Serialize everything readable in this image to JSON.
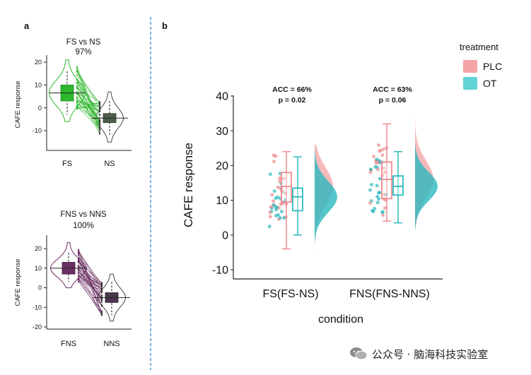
{
  "panel_a": {
    "label": "a",
    "top": {
      "title": "FS vs NS",
      "percent": "97%",
      "ylabel": "CAFE response",
      "yticks": [
        "20",
        "10",
        "0",
        "-10"
      ],
      "xticks": [
        "FS",
        "NS"
      ]
    },
    "bottom": {
      "title": "FNS vs NNS",
      "percent": "100%",
      "ylabel": "CAFE response",
      "yticks": [
        "20",
        "10",
        "0",
        "-10",
        "-20"
      ],
      "xticks": [
        "FNS",
        "NNS"
      ]
    }
  },
  "panel_b": {
    "label": "b",
    "ylabel": "CAFE response",
    "xlabel": "condition",
    "yticks": [
      "40",
      "30",
      "20",
      "10",
      "0",
      "-10"
    ],
    "legend_title": "treatment",
    "groups": [
      {
        "name": "FS(FS-NS)",
        "acc": "ACC = 66%",
        "p": "p = 0.02"
      },
      {
        "name": "FNS(FNS-NNS)",
        "acc": "ACC = 63%",
        "p": "p = 0.06"
      }
    ],
    "legend": [
      {
        "name": "PLC",
        "color": "#f4a3a6"
      },
      {
        "name": "OT",
        "color": "#5fd3d6"
      }
    ]
  },
  "watermark": {
    "text": "公众号 · 脑海科技实验室"
  },
  "colors": {
    "green": "#2db82d",
    "green_dark": "#3f5a3f",
    "purple": "#6b2f63",
    "purple_dark": "#4e3652",
    "plc": "#f08a8e",
    "ot": "#2bb9bf",
    "divider": "#3d8fd6"
  },
  "chart_data": [
    {
      "type": "violin-paired",
      "title": "FS vs NS",
      "subtitle": "97%",
      "ylabel": "CAFE response",
      "categories": [
        "FS",
        "NS"
      ],
      "ylim": [
        -15,
        22
      ],
      "summary": [
        {
          "name": "FS",
          "median": 6.5,
          "q1": 3,
          "q3": 10,
          "min": -3,
          "max": 16
        },
        {
          "name": "NS",
          "median": -4.5,
          "q1": -6.5,
          "q3": -2.5,
          "min": -12,
          "max": 3
        }
      ]
    },
    {
      "type": "violin-paired",
      "title": "FNS vs NNS",
      "subtitle": "100%",
      "ylabel": "CAFE response",
      "categories": [
        "FNS",
        "NNS"
      ],
      "ylim": [
        -20,
        22
      ],
      "summary": [
        {
          "name": "FNS",
          "median": 10,
          "q1": 7,
          "q3": 13,
          "min": 3,
          "max": 18
        },
        {
          "name": "NNS",
          "median": -5,
          "q1": -7.5,
          "q3": -2.5,
          "min": -14,
          "max": 3
        }
      ]
    },
    {
      "type": "raincloud-box",
      "xlabel": "condition",
      "ylabel": "CAFE response",
      "categories": [
        "FS(FS-NS)",
        "FNS(FNS-NNS)"
      ],
      "ylim": [
        -10,
        40
      ],
      "annotations": [
        {
          "category": "FS(FS-NS)",
          "text": [
            "ACC = 66%",
            "p = 0.02"
          ]
        },
        {
          "category": "FNS(FNS-NNS)",
          "text": [
            "ACC = 63%",
            "p = 0.06"
          ]
        }
      ],
      "series": [
        {
          "name": "PLC",
          "boxes": [
            {
              "median": 14,
              "q1": 9.5,
              "q3": 18,
              "min": -4,
              "max": 24
            },
            {
              "median": 16,
              "q1": 10.5,
              "q3": 21,
              "min": 4,
              "max": 32
            }
          ]
        },
        {
          "name": "OT",
          "boxes": [
            {
              "median": 11,
              "q1": 7,
              "q3": 13.5,
              "min": 0,
              "max": 22.5
            },
            {
              "median": 14,
              "q1": 11.5,
              "q3": 17,
              "min": 3.5,
              "max": 24
            }
          ]
        }
      ]
    }
  ]
}
